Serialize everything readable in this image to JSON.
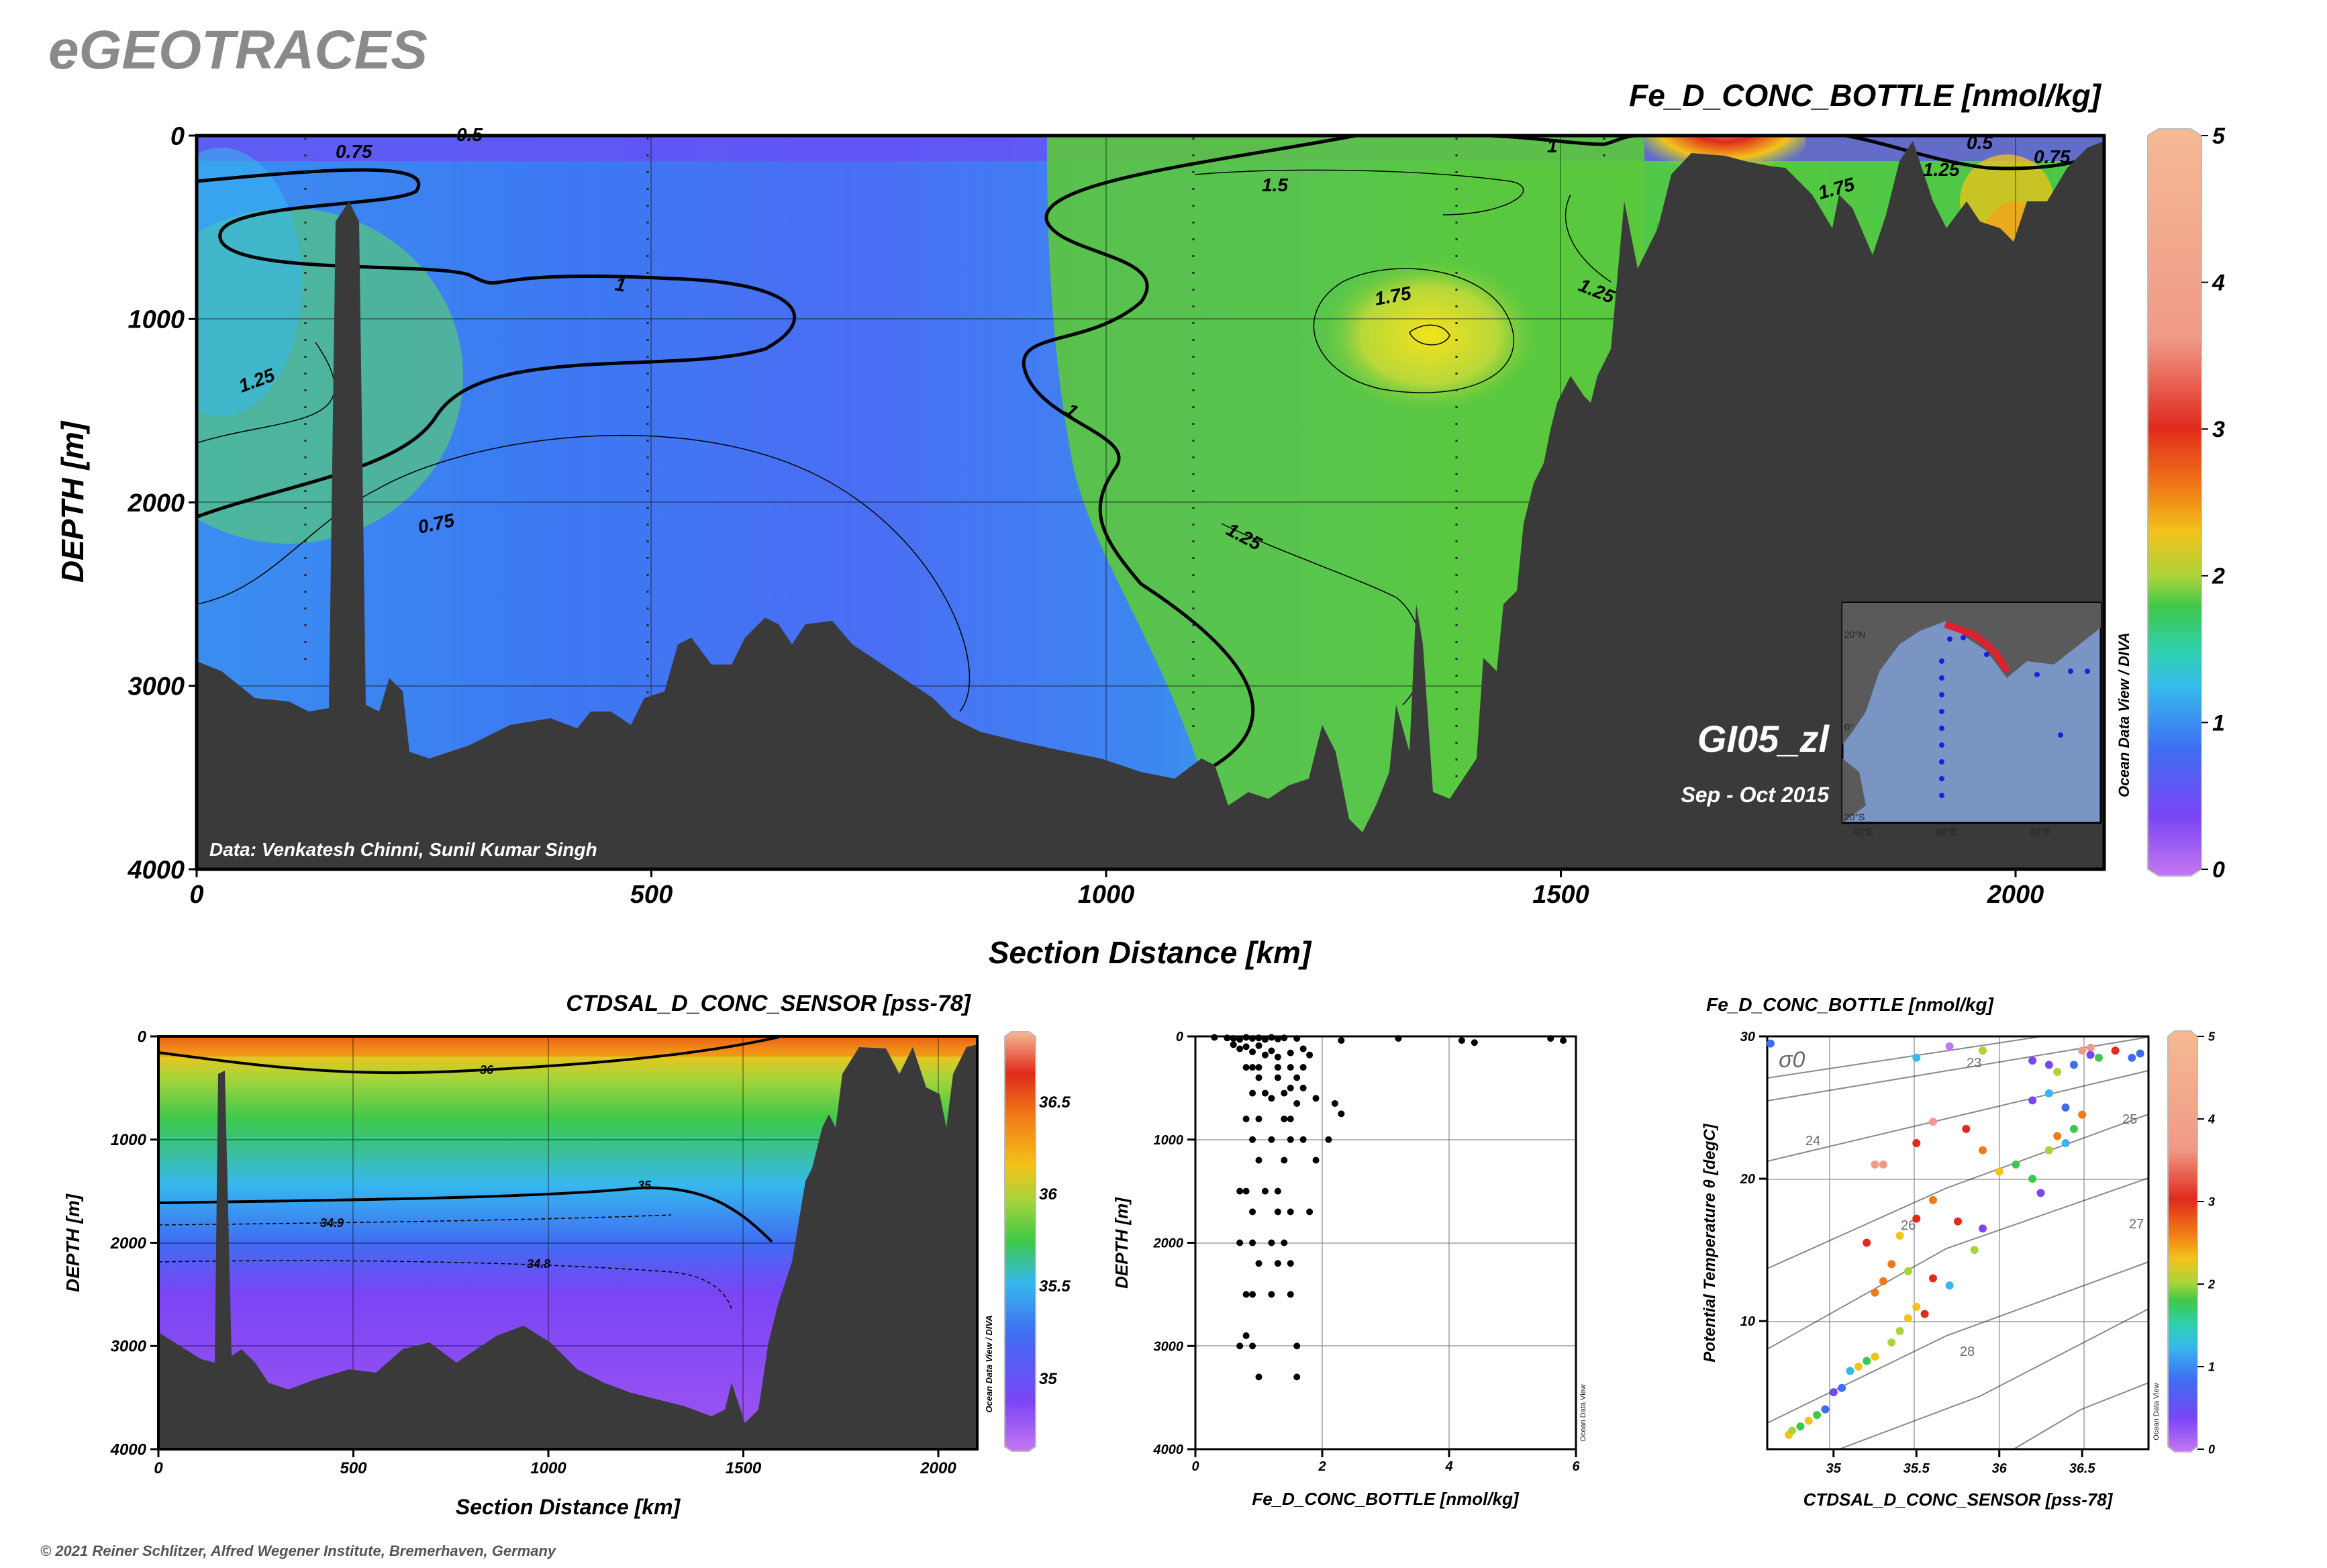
{
  "brand": "eGEOTRACES",
  "footer": "© 2021 Reiner Schlitzer, Alfred Wegener Institute, Bremerhaven, Germany",
  "odv_credit": "Ocean Data View / DIVA",
  "odv_credit_short": "Ocean Data View",
  "colors": {
    "seafloor": "#3a3a3a",
    "colorbar": [
      "#c477f0",
      "#7a45f5",
      "#3f6df2",
      "#36b8ee",
      "#2fd0b0",
      "#3ec84a",
      "#a9d43a",
      "#f3c31b",
      "#f07a16",
      "#e02a1c",
      "#f09a88",
      "#f5b993"
    ]
  },
  "chart_data": [
    {
      "type": "heatmap",
      "title": "Fe_D_CONC_BOTTLE [nmol/kg]",
      "xlabel": "Section Distance [km]",
      "ylabel": "DEPTH [m]",
      "xlim": [
        0,
        2100
      ],
      "ylim": [
        4000,
        0
      ],
      "x_ticks": [
        "0",
        "500",
        "1000",
        "1500",
        "2000"
      ],
      "y_ticks": [
        "0",
        "1000",
        "2000",
        "3000",
        "4000"
      ],
      "colorbar": {
        "min": 0,
        "max": 5,
        "ticks": [
          "0",
          "1",
          "2",
          "3",
          "4",
          "5"
        ]
      },
      "contour_labels": [
        "0.75",
        "0.5",
        "1",
        "1.25",
        "1.5",
        "1.75",
        "0.75",
        "1",
        "1.25",
        "1.75",
        "1.25",
        "1",
        "1.25",
        "0.5",
        "0.75",
        "1.25",
        "1.75"
      ],
      "cruise": "GI05_zl",
      "period": "Sep - Oct 2015",
      "data_credit": "Data: Venkatesh Chinni, Sunil Kumar Singh",
      "inset_map": {
        "lat_labels": [
          "20°N",
          "0°",
          "20°S"
        ],
        "lon_labels": [
          "40°E",
          "60°E",
          "80°E"
        ]
      },
      "grid": true
    },
    {
      "type": "heatmap",
      "title": "CTDSAL_D_CONC_SENSOR [pss-78]",
      "xlabel": "Section Distance [km]",
      "ylabel": "DEPTH [m]",
      "xlim": [
        0,
        2100
      ],
      "ylim": [
        4000,
        0
      ],
      "x_ticks": [
        "0",
        "500",
        "1000",
        "1500",
        "2000"
      ],
      "y_ticks": [
        "0",
        "1000",
        "2000",
        "3000",
        "4000"
      ],
      "colorbar": {
        "ticks": [
          "35",
          "35.5",
          "36",
          "36.5"
        ]
      },
      "contour_labels": [
        "36",
        "35",
        "34.9",
        "34.8"
      ],
      "grid": true
    },
    {
      "type": "scatter",
      "xlabel": "Fe_D_CONC_BOTTLE [nmol/kg]",
      "ylabel": "DEPTH [m]",
      "xlim": [
        0,
        6
      ],
      "ylim": [
        4000,
        0
      ],
      "x_ticks": [
        "0",
        "2",
        "4",
        "6"
      ],
      "y_ticks": [
        "0",
        "1000",
        "2000",
        "3000",
        "4000"
      ],
      "points": [
        [
          0.3,
          10
        ],
        [
          0.5,
          15
        ],
        [
          0.6,
          20
        ],
        [
          0.7,
          30
        ],
        [
          0.8,
          10
        ],
        [
          0.9,
          20
        ],
        [
          1.0,
          15
        ],
        [
          1.1,
          30
        ],
        [
          1.2,
          10
        ],
        [
          1.3,
          25
        ],
        [
          1.4,
          15
        ],
        [
          1.6,
          20
        ],
        [
          2.3,
          40
        ],
        [
          3.2,
          20
        ],
        [
          4.2,
          40
        ],
        [
          4.4,
          60
        ],
        [
          5.6,
          20
        ],
        [
          5.8,
          40
        ],
        [
          0.6,
          80
        ],
        [
          0.7,
          120
        ],
        [
          0.8,
          100
        ],
        [
          0.9,
          150
        ],
        [
          1.0,
          90
        ],
        [
          1.1,
          180
        ],
        [
          1.2,
          140
        ],
        [
          1.3,
          200
        ],
        [
          1.5,
          160
        ],
        [
          1.7,
          120
        ],
        [
          1.8,
          180
        ],
        [
          0.8,
          300
        ],
        [
          0.9,
          300
        ],
        [
          1.0,
          300
        ],
        [
          1.3,
          300
        ],
        [
          1.5,
          300
        ],
        [
          1.7,
          300
        ],
        [
          1.6,
          400
        ],
        [
          1.3,
          400
        ],
        [
          1.0,
          400
        ],
        [
          0.9,
          550
        ],
        [
          1.1,
          550
        ],
        [
          1.4,
          550
        ],
        [
          1.5,
          500
        ],
        [
          1.7,
          500
        ],
        [
          1.2,
          600
        ],
        [
          1.6,
          650
        ],
        [
          1.9,
          600
        ],
        [
          2.2,
          650
        ],
        [
          2.3,
          750
        ],
        [
          0.8,
          800
        ],
        [
          1.0,
          800
        ],
        [
          1.4,
          800
        ],
        [
          1.5,
          800
        ],
        [
          0.9,
          1000
        ],
        [
          1.2,
          1000
        ],
        [
          1.5,
          1000
        ],
        [
          1.7,
          1000
        ],
        [
          2.1,
          1000
        ],
        [
          1.0,
          1200
        ],
        [
          1.4,
          1200
        ],
        [
          1.9,
          1200
        ],
        [
          0.7,
          1500
        ],
        [
          0.8,
          1500
        ],
        [
          1.1,
          1500
        ],
        [
          1.3,
          1500
        ],
        [
          0.9,
          1700
        ],
        [
          1.3,
          1700
        ],
        [
          1.5,
          1700
        ],
        [
          1.8,
          1700
        ],
        [
          0.7,
          2000
        ],
        [
          0.9,
          2000
        ],
        [
          1.2,
          2000
        ],
        [
          1.4,
          2000
        ],
        [
          1.0,
          2200
        ],
        [
          1.3,
          2200
        ],
        [
          1.5,
          2200
        ],
        [
          0.8,
          2500
        ],
        [
          0.9,
          2500
        ],
        [
          1.2,
          2500
        ],
        [
          1.5,
          2500
        ],
        [
          0.8,
          2900
        ],
        [
          0.7,
          3000
        ],
        [
          0.9,
          3000
        ],
        [
          1.6,
          3000
        ],
        [
          1.0,
          3300
        ],
        [
          1.6,
          3300
        ]
      ],
      "grid": true
    },
    {
      "type": "scatter",
      "title": "Fe_D_CONC_BOTTLE [nmol/kg]",
      "xlabel": "CTDSAL_D_CONC_SENSOR [pss-78]",
      "ylabel": "Potential Temperature θ [degC]",
      "xlim": [
        34.6,
        36.9
      ],
      "ylim": [
        1,
        30
      ],
      "x_ticks": [
        "35",
        "35.5",
        "36",
        "36.5"
      ],
      "y_ticks": [
        "10",
        "20",
        "30"
      ],
      "isopycnal_labels": [
        "σ0",
        "23",
        "24",
        "25",
        "26",
        "27",
        "28"
      ],
      "colorbar": {
        "min": 0,
        "max": 5,
        "ticks": [
          "0",
          "1",
          "2",
          "3",
          "4",
          "5"
        ]
      },
      "points": [
        [
          34.73,
          2.0,
          1.8
        ],
        [
          34.75,
          2.3,
          1.6
        ],
        [
          34.8,
          2.6,
          1.4
        ],
        [
          34.85,
          3.0,
          1.9
        ],
        [
          34.9,
          3.4,
          1.3
        ],
        [
          34.95,
          3.8,
          1.0
        ],
        [
          35.0,
          5.0,
          0.6
        ],
        [
          35.05,
          5.3,
          0.9
        ],
        [
          35.1,
          6.5,
          1.2
        ],
        [
          35.15,
          6.8,
          1.8
        ],
        [
          35.2,
          7.2,
          1.5
        ],
        [
          35.25,
          7.5,
          1.9
        ],
        [
          35.35,
          8.5,
          1.7
        ],
        [
          35.4,
          9.3,
          1.6
        ],
        [
          35.45,
          10.2,
          1.9
        ],
        [
          35.5,
          11.0,
          1.8
        ],
        [
          35.55,
          10.5,
          2.5
        ],
        [
          35.25,
          12.0,
          2.1
        ],
        [
          35.3,
          12.8,
          2.3
        ],
        [
          35.35,
          14.0,
          2.2
        ],
        [
          35.45,
          13.5,
          1.7
        ],
        [
          35.6,
          13.0,
          2.4
        ],
        [
          35.7,
          12.5,
          1.2
        ],
        [
          35.2,
          15.5,
          2.6
        ],
        [
          35.4,
          16.0,
          2.0
        ],
        [
          35.5,
          17.2,
          2.4
        ],
        [
          35.6,
          18.5,
          2.3
        ],
        [
          35.75,
          17.0,
          2.5
        ],
        [
          35.85,
          15.0,
          1.7
        ],
        [
          35.9,
          16.5,
          0.8
        ],
        [
          35.25,
          21.0,
          3.4
        ],
        [
          35.3,
          21.0,
          3.5
        ],
        [
          35.5,
          22.5,
          2.6
        ],
        [
          35.6,
          24.0,
          3.8
        ],
        [
          35.8,
          23.5,
          2.7
        ],
        [
          35.9,
          22.0,
          2.2
        ],
        [
          36.0,
          20.5,
          1.9
        ],
        [
          36.1,
          21.0,
          1.3
        ],
        [
          36.2,
          20.0,
          1.5
        ],
        [
          36.25,
          19.0,
          0.7
        ],
        [
          36.3,
          22.0,
          1.6
        ],
        [
          36.35,
          23.0,
          2.1
        ],
        [
          36.4,
          22.5,
          1.1
        ],
        [
          36.45,
          23.5,
          1.4
        ],
        [
          36.5,
          24.5,
          2.3
        ],
        [
          36.2,
          25.5,
          0.8
        ],
        [
          36.3,
          26.0,
          1.2
        ],
        [
          36.35,
          27.5,
          1.6
        ],
        [
          36.4,
          25.0,
          1.0
        ],
        [
          36.45,
          28.0,
          0.9
        ],
        [
          36.5,
          29.0,
          3.6
        ],
        [
          36.55,
          29.2,
          4.2
        ],
        [
          36.6,
          28.5,
          1.3
        ],
        [
          36.7,
          29.0,
          3.0
        ],
        [
          36.8,
          28.5,
          1.0
        ],
        [
          34.62,
          29.5,
          1.0
        ],
        [
          35.5,
          28.5,
          1.1
        ],
        [
          35.7,
          29.3,
          0.3
        ],
        [
          35.9,
          29.0,
          1.6
        ],
        [
          36.2,
          28.3,
          0.5
        ],
        [
          36.3,
          28.0,
          0.8
        ],
        [
          36.55,
          28.7,
          0.6
        ],
        [
          36.85,
          28.8,
          0.9
        ]
      ],
      "grid": true
    }
  ]
}
